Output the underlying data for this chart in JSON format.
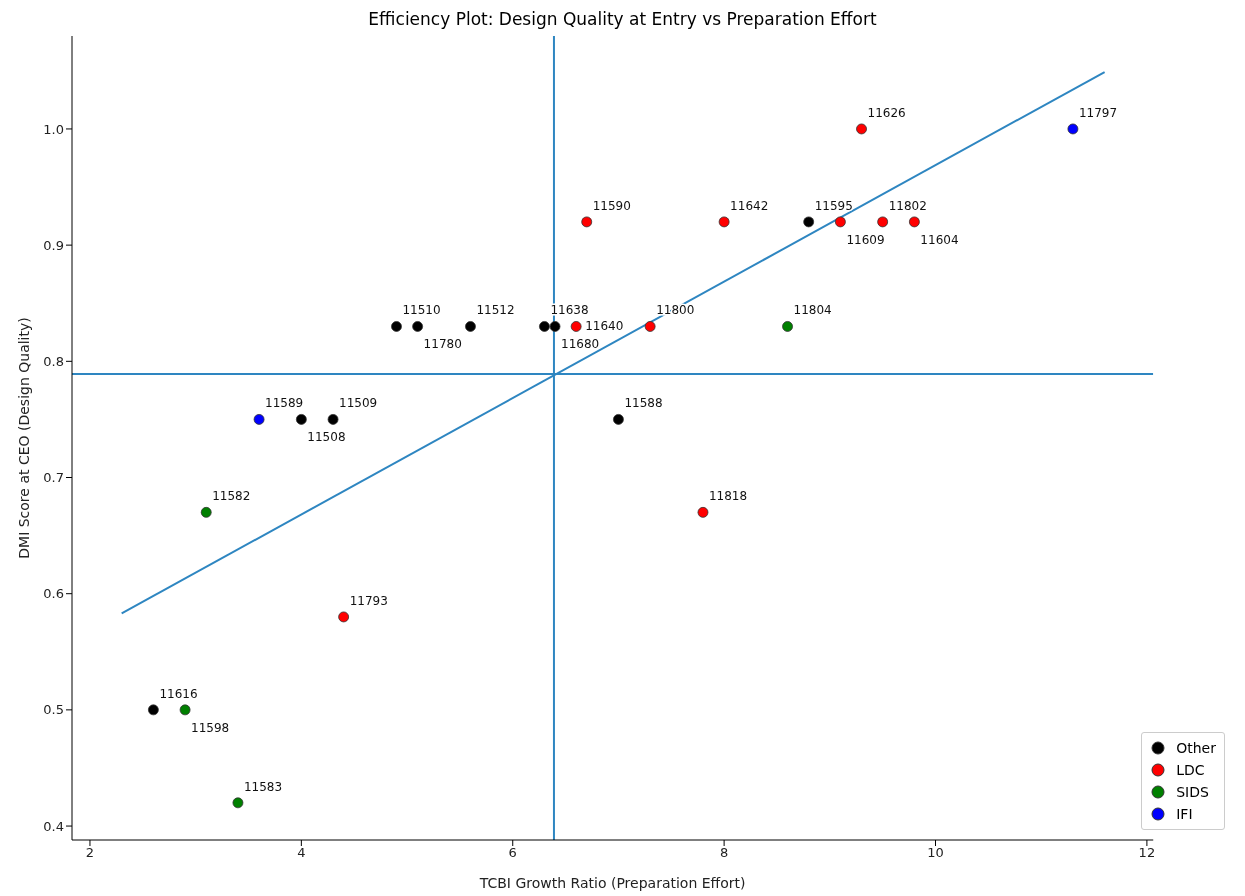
{
  "chart_data": {
    "type": "scatter",
    "title": "Efficiency Plot: Design Quality at Entry vs Preparation Effort",
    "xlabel": "TCBI Growth Ratio (Preparation Effort)",
    "ylabel": "DMI Score at CEO (Design Quality)",
    "xlim": [
      1.83,
      12.06
    ],
    "ylim": [
      0.388,
      1.08
    ],
    "xticks": [
      2,
      4,
      6,
      8,
      10,
      12
    ],
    "yticks": [
      {
        "value": 0.4,
        "label": "0.4"
      },
      {
        "value": 0.5,
        "label": "0.5"
      },
      {
        "value": 0.6,
        "label": "0.6"
      },
      {
        "value": 0.7,
        "label": "0.7"
      },
      {
        "value": 0.8,
        "label": "0.8"
      },
      {
        "value": 0.9,
        "label": "0.9"
      },
      {
        "value": 1.0,
        "label": "1.0"
      }
    ],
    "legend": "bottom right",
    "marker": "circle",
    "series": [
      {
        "name": "Other",
        "color": "#000000",
        "x": [
          2.6,
          4.0,
          4.3,
          4.9,
          5.1,
          5.6,
          6.3,
          6.4,
          7.0,
          8.8
        ],
        "values": [
          0.5,
          0.75,
          0.75,
          0.83,
          0.83,
          0.83,
          0.83,
          0.83,
          0.75,
          0.92
        ]
      },
      {
        "name": "LDC",
        "color": "#ff0000",
        "x": [
          4.4,
          6.6,
          6.7,
          7.3,
          7.8,
          8.0,
          9.1,
          9.3,
          9.5,
          9.8
        ],
        "values": [
          0.58,
          0.83,
          0.92,
          0.83,
          0.67,
          0.92,
          0.92,
          1.0,
          0.92,
          0.92
        ]
      },
      {
        "name": "SIDS",
        "color": "#008000",
        "x": [
          2.9,
          3.1,
          3.4,
          8.6
        ],
        "values": [
          0.5,
          0.67,
          0.42,
          0.83
        ]
      },
      {
        "name": "IFI",
        "color": "#0000ff",
        "x": [
          3.6,
          11.3
        ],
        "values": [
          0.75,
          1.0
        ]
      },
      {
        "type": "line",
        "color": "#2e86c1",
        "x": [
          2.3,
          11.6
        ],
        "values": [
          0.583,
          1.049
        ],
        "line_style": "solid",
        "marker": "none"
      }
    ],
    "ref_lines": [
      {
        "axis": "x",
        "value": 6.39,
        "color": "#2e86c1"
      },
      {
        "axis": "y",
        "value": 0.789,
        "color": "#2e86c1"
      }
    ],
    "annotations": [
      {
        "text": "11616",
        "x": 2.6,
        "y": 0.5
      },
      {
        "text": "11508",
        "x": 4.0,
        "y": 0.75
      },
      {
        "text": "11509",
        "x": 4.3,
        "y": 0.75
      },
      {
        "text": "11510",
        "x": 4.9,
        "y": 0.83
      },
      {
        "text": "11780",
        "x": 5.1,
        "y": 0.83
      },
      {
        "text": "11512",
        "x": 5.6,
        "y": 0.83
      },
      {
        "text": "11638",
        "x": 6.3,
        "y": 0.83
      },
      {
        "text": "11680",
        "x": 6.4,
        "y": 0.83
      },
      {
        "text": "11588",
        "x": 7.0,
        "y": 0.75
      },
      {
        "text": "11595",
        "x": 8.8,
        "y": 0.92
      },
      {
        "text": "11793",
        "x": 4.4,
        "y": 0.58
      },
      {
        "text": "11640",
        "x": 6.6,
        "y": 0.83
      },
      {
        "text": "11590",
        "x": 6.7,
        "y": 0.92
      },
      {
        "text": "11800",
        "x": 7.3,
        "y": 0.83
      },
      {
        "text": "11818",
        "x": 7.8,
        "y": 0.67
      },
      {
        "text": "11642",
        "x": 8.0,
        "y": 0.92
      },
      {
        "text": "11609",
        "x": 9.1,
        "y": 0.92
      },
      {
        "text": "11626",
        "x": 9.3,
        "y": 1.0
      },
      {
        "text": "11802",
        "x": 9.5,
        "y": 0.92
      },
      {
        "text": "11604",
        "x": 9.8,
        "y": 0.92
      },
      {
        "text": "11598",
        "x": 2.9,
        "y": 0.5
      },
      {
        "text": "11582",
        "x": 3.1,
        "y": 0.67
      },
      {
        "text": "11583",
        "x": 3.4,
        "y": 0.42
      },
      {
        "text": "11804",
        "x": 8.6,
        "y": 0.83
      },
      {
        "text": "11589",
        "x": 3.6,
        "y": 0.75
      },
      {
        "text": "11797",
        "x": 11.3,
        "y": 1.0
      }
    ]
  }
}
